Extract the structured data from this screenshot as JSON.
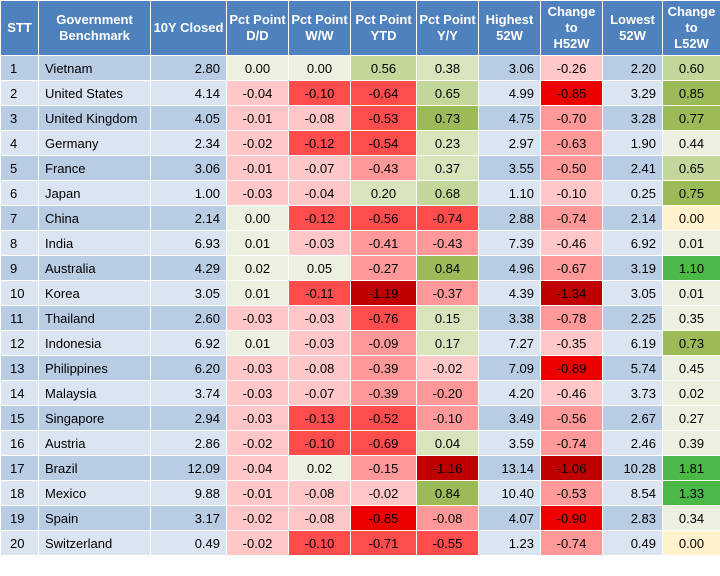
{
  "headers": [
    {
      "line1": "STT",
      "line2": ""
    },
    {
      "line1": "Government",
      "line2": "Benchmark"
    },
    {
      "line1": "10Y Closed",
      "line2": ""
    },
    {
      "line1": "Pct Point",
      "line2": "D/D"
    },
    {
      "line1": "Pct Point",
      "line2": "W/W"
    },
    {
      "line1": "Pct Point",
      "line2": "YTD"
    },
    {
      "line1": "Pct Point",
      "line2": "Y/Y"
    },
    {
      "line1": "Highest",
      "line2": "52W"
    },
    {
      "line1": "Change to",
      "line2": "H52W"
    },
    {
      "line1": "Lowest",
      "line2": "52W"
    },
    {
      "line1": "Change to",
      "line2": "L52W"
    }
  ],
  "rows": [
    {
      "stt": "1",
      "name": "Vietnam",
      "closed": "2.80",
      "dd": "0.00",
      "ww": "0.00",
      "ytd": "0.56",
      "yy": "0.38",
      "h52": "3.06",
      "ch": "-0.26",
      "l52": "2.20",
      "cl": "0.60"
    },
    {
      "stt": "2",
      "name": "United States",
      "closed": "4.14",
      "dd": "-0.04",
      "ww": "-0.10",
      "ytd": "-0.64",
      "yy": "0.65",
      "h52": "4.99",
      "ch": "-0.85",
      "l52": "3.29",
      "cl": "0.85"
    },
    {
      "stt": "3",
      "name": "United Kingdom",
      "closed": "4.05",
      "dd": "-0.01",
      "ww": "-0.08",
      "ytd": "-0.53",
      "yy": "0.73",
      "h52": "4.75",
      "ch": "-0.70",
      "l52": "3.28",
      "cl": "0.77"
    },
    {
      "stt": "4",
      "name": "Germany",
      "closed": "2.34",
      "dd": "-0.02",
      "ww": "-0.12",
      "ytd": "-0.54",
      "yy": "0.23",
      "h52": "2.97",
      "ch": "-0.63",
      "l52": "1.90",
      "cl": "0.44"
    },
    {
      "stt": "5",
      "name": "France",
      "closed": "3.06",
      "dd": "-0.01",
      "ww": "-0.07",
      "ytd": "-0.43",
      "yy": "0.37",
      "h52": "3.55",
      "ch": "-0.50",
      "l52": "2.41",
      "cl": "0.65"
    },
    {
      "stt": "6",
      "name": "Japan",
      "closed": "1.00",
      "dd": "-0.03",
      "ww": "-0.04",
      "ytd": "0.20",
      "yy": "0.68",
      "h52": "1.10",
      "ch": "-0.10",
      "l52": "0.25",
      "cl": "0.75"
    },
    {
      "stt": "7",
      "name": "China",
      "closed": "2.14",
      "dd": "0.00",
      "ww": "-0.12",
      "ytd": "-0.56",
      "yy": "-0.74",
      "h52": "2.88",
      "ch": "-0.74",
      "l52": "2.14",
      "cl": "0.00"
    },
    {
      "stt": "8",
      "name": "India",
      "closed": "6.93",
      "dd": "0.01",
      "ww": "-0.03",
      "ytd": "-0.41",
      "yy": "-0.43",
      "h52": "7.39",
      "ch": "-0.46",
      "l52": "6.92",
      "cl": "0.01"
    },
    {
      "stt": "9",
      "name": "Australia",
      "closed": "4.29",
      "dd": "0.02",
      "ww": "0.05",
      "ytd": "-0.27",
      "yy": "0.84",
      "h52": "4.96",
      "ch": "-0.67",
      "l52": "3.19",
      "cl": "1.10"
    },
    {
      "stt": "10",
      "name": "Korea",
      "closed": "3.05",
      "dd": "0.01",
      "ww": "-0.11",
      "ytd": "-1.19",
      "yy": "-0.37",
      "h52": "4.39",
      "ch": "-1.34",
      "l52": "3.05",
      "cl": "0.01"
    },
    {
      "stt": "11",
      "name": "Thailand",
      "closed": "2.60",
      "dd": "-0.03",
      "ww": "-0.03",
      "ytd": "-0.76",
      "yy": "0.15",
      "h52": "3.38",
      "ch": "-0.78",
      "l52": "2.25",
      "cl": "0.35"
    },
    {
      "stt": "12",
      "name": "Indonesia",
      "closed": "6.92",
      "dd": "0.01",
      "ww": "-0.03",
      "ytd": "-0.09",
      "yy": "0.17",
      "h52": "7.27",
      "ch": "-0.35",
      "l52": "6.19",
      "cl": "0.73"
    },
    {
      "stt": "13",
      "name": "Philippines",
      "closed": "6.20",
      "dd": "-0.03",
      "ww": "-0.08",
      "ytd": "-0.39",
      "yy": "-0.02",
      "h52": "7.09",
      "ch": "-0.89",
      "l52": "5.74",
      "cl": "0.45"
    },
    {
      "stt": "14",
      "name": "Malaysia",
      "closed": "3.74",
      "dd": "-0.03",
      "ww": "-0.07",
      "ytd": "-0.39",
      "yy": "-0.20",
      "h52": "4.20",
      "ch": "-0.46",
      "l52": "3.73",
      "cl": "0.02"
    },
    {
      "stt": "15",
      "name": "Singapore",
      "closed": "2.94",
      "dd": "-0.03",
      "ww": "-0.13",
      "ytd": "-0.52",
      "yy": "-0.10",
      "h52": "3.49",
      "ch": "-0.56",
      "l52": "2.67",
      "cl": "0.27"
    },
    {
      "stt": "16",
      "name": "Austria",
      "closed": "2.86",
      "dd": "-0.02",
      "ww": "-0.10",
      "ytd": "-0.69",
      "yy": "0.04",
      "h52": "3.59",
      "ch": "-0.74",
      "l52": "2.46",
      "cl": "0.39"
    },
    {
      "stt": "17",
      "name": "Brazil",
      "closed": "12.09",
      "dd": "-0.04",
      "ww": "0.02",
      "ytd": "-0.15",
      "yy": "-1.16",
      "h52": "13.14",
      "ch": "-1.06",
      "l52": "10.28",
      "cl": "1.81"
    },
    {
      "stt": "18",
      "name": "Mexico",
      "closed": "9.88",
      "dd": "-0.01",
      "ww": "-0.08",
      "ytd": "-0.02",
      "yy": "0.84",
      "h52": "10.40",
      "ch": "-0.53",
      "l52": "8.54",
      "cl": "1.33"
    },
    {
      "stt": "19",
      "name": "Spain",
      "closed": "3.17",
      "dd": "-0.02",
      "ww": "-0.08",
      "ytd": "-0.85",
      "yy": "-0.08",
      "h52": "4.07",
      "ch": "-0.90",
      "l52": "2.83",
      "cl": "0.34"
    },
    {
      "stt": "20",
      "name": "Switzerland",
      "closed": "0.49",
      "dd": "-0.02",
      "ww": "-0.10",
      "ytd": "-0.71",
      "yy": "-0.55",
      "h52": "1.23",
      "ch": "-0.74",
      "l52": "0.49",
      "cl": "0.00"
    }
  ],
  "colors": {
    "header_bg": "#4f81bd",
    "header_text": "#ffffff",
    "row_odd": "#b8cce4",
    "row_even": "#dbe5f1",
    "neutral": "#ebf1de",
    "green_scale": [
      "#d8e4bc",
      "#c4d79b",
      "#9bbb59",
      "#4cb848"
    ],
    "red_scale": [
      "#ffc7c7",
      "#ff9999",
      "#ff4d4d",
      "#ee0000",
      "#c00000"
    ]
  }
}
